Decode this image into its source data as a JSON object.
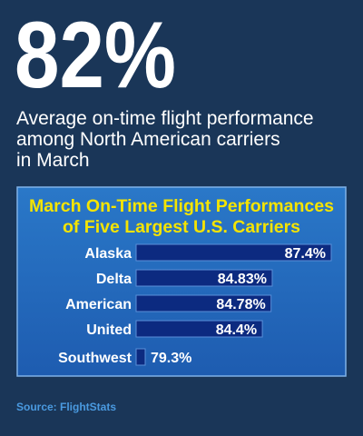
{
  "headline": "82%",
  "subtitle": [
    "Average on-time flight performance",
    "among North American carriers",
    "in March"
  ],
  "source": "Source: FlightStats",
  "chart_data": {
    "type": "bar",
    "orientation": "horizontal",
    "title": [
      "March On-Time Flight Performances",
      "of Five Largest U.S. Carriers"
    ],
    "categories": [
      "Alaska",
      "Delta",
      "American",
      "United",
      "Southwest"
    ],
    "values": [
      87.4,
      84.83,
      84.78,
      84.4,
      79.3
    ],
    "value_labels": [
      "87.4%",
      "84.83%",
      "84.78%",
      "84.4%",
      "79.3%"
    ],
    "color": "#0c2a80"
  }
}
